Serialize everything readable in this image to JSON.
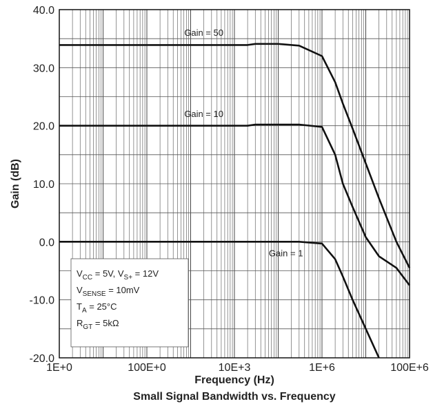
{
  "chart_data": {
    "type": "line",
    "title": "Small Signal Bandwidth vs. Frequency",
    "xlabel": "Frequency (Hz)",
    "ylabel": "Gain (dB)",
    "x_scale": "log",
    "xlim": [
      1,
      100000000
    ],
    "ylim": [
      -20,
      40
    ],
    "x_tick_labels": [
      "1E+0",
      "100E+0",
      "10E+3",
      "1E+6",
      "100E+6"
    ],
    "x_tick_values": [
      1,
      100,
      10000,
      1000000,
      100000000
    ],
    "y_tick_labels": [
      "-20.0",
      "-10.0",
      "0.0",
      "10.0",
      "20.0",
      "30.0",
      "40.0"
    ],
    "y_tick_values": [
      -20,
      -10,
      0,
      10,
      20,
      30,
      40
    ],
    "grid": true,
    "series": [
      {
        "name": "Gain = 50",
        "x": [
          1,
          20000,
          30000,
          100000,
          300000,
          1000000,
          2000000,
          3000000,
          5000000,
          10000000,
          20000000,
          50000000,
          100000000
        ],
        "y": [
          33.9,
          33.9,
          34.1,
          34.1,
          33.8,
          32.0,
          27.5,
          23.8,
          19.5,
          13.5,
          7.5,
          0.0,
          -4.5
        ]
      },
      {
        "name": "Gain = 10",
        "x": [
          1,
          20000,
          30000,
          300000,
          1000000,
          2000000,
          3000000,
          5000000,
          10000000,
          20000000,
          50000000,
          100000000
        ],
        "y": [
          20.0,
          20.0,
          20.2,
          20.2,
          19.8,
          15.0,
          10.0,
          6.0,
          0.8,
          -2.5,
          -4.5,
          -7.5
        ]
      },
      {
        "name": "Gain = 1",
        "x": [
          1,
          300000,
          1000000,
          2000000,
          3000000,
          5000000,
          10000000,
          20000000
        ],
        "y": [
          0.0,
          0.0,
          -0.3,
          -3.0,
          -6.0,
          -10.0,
          -15.0,
          -20.0
        ]
      }
    ],
    "annotations": [
      {
        "text": "Gain = 50",
        "x": 2000,
        "y": 35.5
      },
      {
        "text": "Gain = 10",
        "x": 2000,
        "y": 21.5
      },
      {
        "text": "Gain = 1",
        "x": 150000,
        "y": -2.5
      }
    ],
    "conditions": [
      {
        "parts": [
          [
            "V",
            ""
          ],
          [
            "CC",
            "sub"
          ],
          [
            " = 5V, V",
            ""
          ],
          [
            "S+",
            "sub"
          ],
          [
            " = 12V",
            ""
          ]
        ]
      },
      {
        "parts": [
          [
            "V",
            ""
          ],
          [
            "SENSE",
            "sub"
          ],
          [
            " = 10mV",
            ""
          ]
        ]
      },
      {
        "parts": [
          [
            "T",
            ""
          ],
          [
            "A",
            "sub"
          ],
          [
            " = 25°C",
            ""
          ]
        ]
      },
      {
        "parts": [
          [
            "R",
            ""
          ],
          [
            "GT",
            "sub"
          ],
          [
            " = 5kΩ",
            ""
          ]
        ]
      }
    ]
  }
}
